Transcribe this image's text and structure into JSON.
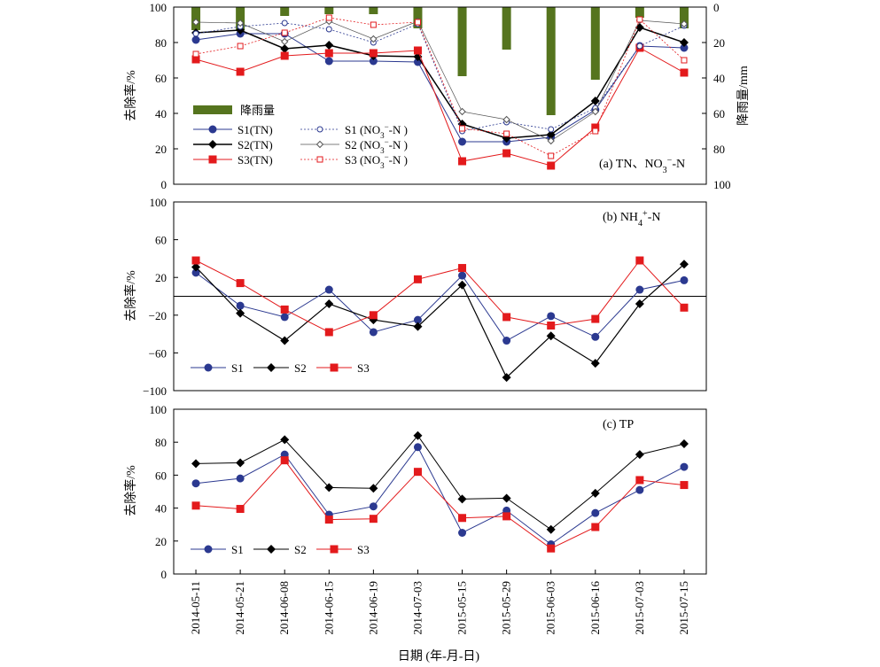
{
  "figure": {
    "x_axis_label": "日期 (年-月-日)",
    "dates": [
      "2014-05-11",
      "2014-05-21",
      "2014-06-08",
      "2014-06-15",
      "2014-06-19",
      "2014-07-03",
      "2015-05-15",
      "2015-05-29",
      "2015-06-03",
      "2015-06-16",
      "2015-07-03",
      "2015-07-15"
    ]
  },
  "colors": {
    "s1": "#2b3990",
    "s2": "#000000",
    "s3": "#e31a1c",
    "rain": "#55741e"
  },
  "chart_data": [
    {
      "id": "a",
      "type": "line",
      "annotation": "(a) TN、NO3⁻-N",
      "ylabel": "去除率/%",
      "y2label": "降雨量/mm",
      "ylim": [
        0,
        100
      ],
      "y2lim": [
        100,
        0
      ],
      "yticks": [
        "0",
        "20",
        "40",
        "60",
        "80",
        "100"
      ],
      "y2ticks": [
        "100",
        "80",
        "60",
        "40",
        "20",
        "0"
      ],
      "rain": {
        "name": "降雨量",
        "values": [
          13,
          13,
          5,
          4,
          4,
          12,
          39,
          24,
          61,
          41,
          6,
          12
        ]
      },
      "series": [
        {
          "name": "S1(TN)",
          "values": [
            81.5,
            85,
            85,
            69.5,
            69.5,
            69,
            24,
            24,
            26.5,
            42,
            78,
            77
          ]
        },
        {
          "name": "S2(TN)",
          "values": [
            85.5,
            87,
            76.5,
            78.5,
            72.5,
            72,
            34,
            26,
            28,
            47,
            88.5,
            80
          ]
        },
        {
          "name": "S3(TN)",
          "values": [
            70.5,
            63.5,
            72.5,
            74,
            74,
            75.5,
            13,
            17.5,
            10.5,
            32,
            77,
            63
          ]
        },
        {
          "name": "S1 (NO3⁻-N )",
          "values": [
            85,
            89,
            91,
            87.5,
            80,
            90.5,
            30,
            35,
            31,
            43,
            78,
            89.5
          ]
        },
        {
          "name": "S2 (NO3⁻-N )",
          "values": [
            91.5,
            91,
            80.5,
            92,
            82,
            92,
            41,
            36.5,
            24.5,
            41,
            92.5,
            90.5
          ]
        },
        {
          "name": "S3 (NO3⁻-N )",
          "values": [
            73.5,
            78,
            85.5,
            94,
            90,
            91.5,
            31.5,
            28.5,
            16,
            30,
            93,
            70
          ]
        }
      ]
    },
    {
      "id": "b",
      "type": "line",
      "annotation": "(b) NH4⁺-N",
      "ylabel": "去除率/%",
      "ylim": [
        -100,
        100
      ],
      "yticks": [
        "−100",
        "−60",
        "−20",
        "20",
        "60",
        "100"
      ],
      "series": [
        {
          "name": "S1",
          "values": [
            25,
            -10,
            -22,
            7,
            -38,
            -25,
            22,
            -47,
            -21,
            -43,
            7,
            17
          ]
        },
        {
          "name": "S2",
          "values": [
            31,
            -18,
            -47,
            -8,
            -25,
            -32,
            12,
            -86,
            -42,
            -71,
            -8,
            34
          ]
        },
        {
          "name": "S3",
          "values": [
            38,
            14,
            -14,
            -38,
            -20,
            18,
            30,
            -22,
            -31,
            -24,
            38,
            -12
          ]
        }
      ]
    },
    {
      "id": "c",
      "type": "line",
      "annotation": "(c) TP",
      "ylabel": "去除率/%",
      "ylim": [
        0,
        100
      ],
      "yticks": [
        "0",
        "20",
        "40",
        "60",
        "80",
        "100"
      ],
      "series": [
        {
          "name": "S1",
          "values": [
            55,
            58,
            72.5,
            36,
            41,
            77,
            25,
            38.5,
            18,
            37,
            51,
            65
          ]
        },
        {
          "name": "S2",
          "values": [
            67,
            67.5,
            81.5,
            52.5,
            52,
            84,
            45.5,
            46,
            27,
            49,
            72.5,
            79
          ]
        },
        {
          "name": "S3",
          "values": [
            41.5,
            39.5,
            69,
            33,
            33.5,
            62,
            34,
            35,
            15.5,
            28.5,
            57,
            54
          ]
        }
      ]
    }
  ]
}
